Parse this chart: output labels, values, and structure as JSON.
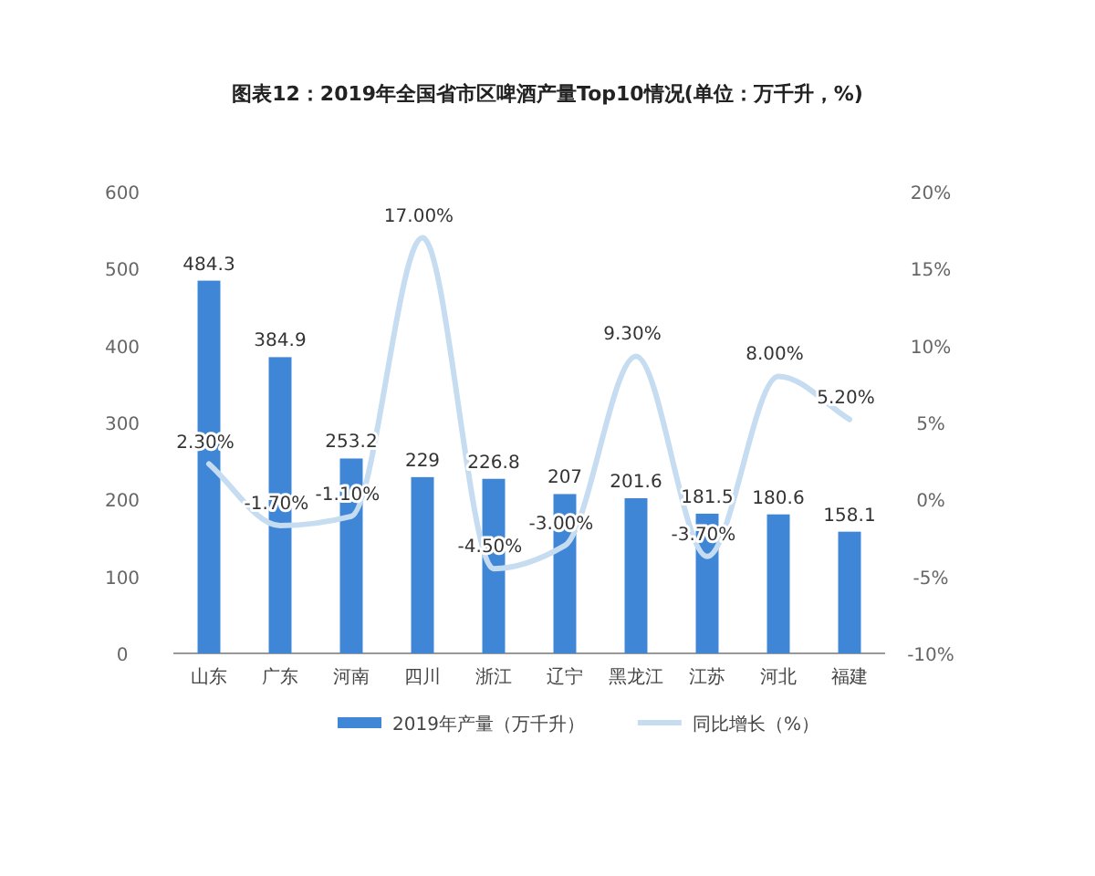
{
  "chart_data": {
    "type": "bar",
    "title": "图表12：2019年全国省市区啤酒产量Top10情况(单位：万千升，%)",
    "categories": [
      "山东",
      "广东",
      "河南",
      "四川",
      "浙江",
      "辽宁",
      "黑龙江",
      "江苏",
      "河北",
      "福建"
    ],
    "series": [
      {
        "name": "2019年产量（万千升）",
        "type": "bar",
        "color": "#3f87d6",
        "values": [
          484.3,
          384.9,
          253.2,
          229,
          226.8,
          207,
          201.6,
          181.5,
          180.6,
          158.1
        ],
        "value_labels": [
          "484.3",
          "384.9",
          "253.2",
          "229",
          "226.8",
          "207",
          "201.6",
          "181.5",
          "180.6",
          "158.1"
        ]
      },
      {
        "name": "同比增长（%）",
        "type": "line",
        "axis": "y2",
        "color": "#c6dcf1",
        "values": [
          2.3,
          -1.7,
          -1.1,
          17.0,
          -4.5,
          -3.0,
          9.3,
          -3.7,
          8.0,
          5.2
        ],
        "value_labels": [
          "2.30%",
          "-1.70%",
          "-1.10%",
          "17.00%",
          "-4.50%",
          "-3.00%",
          "9.30%",
          "-3.70%",
          "8.00%",
          "5.20%"
        ]
      }
    ],
    "ylim": [
      0,
      600
    ],
    "yticks": [
      0,
      100,
      200,
      300,
      400,
      500,
      600
    ],
    "y2lim": [
      -10,
      20
    ],
    "y2ticks": [
      {
        "value": -10,
        "label": "-10%"
      },
      {
        "value": -5,
        "label": "-5%"
      },
      {
        "value": 0,
        "label": "0%"
      },
      {
        "value": 5,
        "label": "5%"
      },
      {
        "value": 10,
        "label": "10%"
      },
      {
        "value": 15,
        "label": "15%"
      },
      {
        "value": 20,
        "label": "20%"
      }
    ],
    "legend": "bottom",
    "marker": "none",
    "line_style": "solid"
  }
}
